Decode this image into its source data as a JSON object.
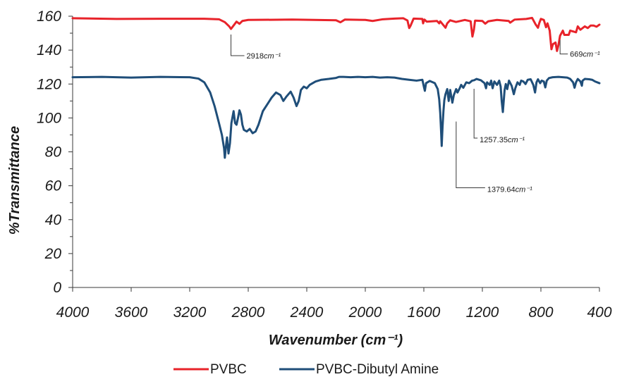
{
  "chart_data": {
    "type": "line",
    "xlabel": "Wavenumber (cm⁻¹)",
    "ylabel": "%Transmittance",
    "xlim": [
      4000,
      400
    ],
    "ylim": [
      0,
      160
    ],
    "x_ticks": [
      4000,
      3600,
      3200,
      2800,
      2400,
      2000,
      1600,
      1200,
      800,
      400
    ],
    "y_ticks": [
      0,
      20,
      40,
      60,
      80,
      100,
      120,
      140,
      160
    ],
    "grid": false,
    "legend_position": "bottom",
    "series": [
      {
        "name": "PVBC",
        "color": "#e8232a",
        "points": [
          [
            4000,
            158.8
          ],
          [
            3700,
            158.4
          ],
          [
            3400,
            158.5
          ],
          [
            3100,
            158.5
          ],
          [
            3000,
            158.2
          ],
          [
            2960,
            156.5
          ],
          [
            2930,
            154.0
          ],
          [
            2918,
            152.5
          ],
          [
            2900,
            154.5
          ],
          [
            2880,
            156.8
          ],
          [
            2860,
            155.5
          ],
          [
            2840,
            157.2
          ],
          [
            2800,
            157.8
          ],
          [
            2500,
            158.0
          ],
          [
            2200,
            157.6
          ],
          [
            2170,
            156.4
          ],
          [
            2140,
            158.0
          ],
          [
            2000,
            157.8
          ],
          [
            1950,
            157.2
          ],
          [
            1880,
            158.2
          ],
          [
            1800,
            158.6
          ],
          [
            1740,
            158.8
          ],
          [
            1712,
            157.5
          ],
          [
            1700,
            153.0
          ],
          [
            1690,
            154.5
          ],
          [
            1670,
            158.6
          ],
          [
            1610,
            158.4
          ],
          [
            1605,
            155.8
          ],
          [
            1596,
            158.0
          ],
          [
            1580,
            156.8
          ],
          [
            1510,
            157.2
          ],
          [
            1495,
            155.8
          ],
          [
            1488,
            157.0
          ],
          [
            1452,
            153.2
          ],
          [
            1440,
            155.8
          ],
          [
            1420,
            157.6
          ],
          [
            1380,
            156.6
          ],
          [
            1320,
            157.8
          ],
          [
            1280,
            157.0
          ],
          [
            1268,
            148.0
          ],
          [
            1258,
            152.0
          ],
          [
            1250,
            157.4
          ],
          [
            1200,
            157.2
          ],
          [
            1180,
            155.6
          ],
          [
            1160,
            157.0
          ],
          [
            1100,
            157.8
          ],
          [
            1020,
            157.2
          ],
          [
            1010,
            156.2
          ],
          [
            980,
            158.0
          ],
          [
            900,
            158.4
          ],
          [
            860,
            159.0
          ],
          [
            835,
            155.0
          ],
          [
            820,
            153.2
          ],
          [
            810,
            156.2
          ],
          [
            800,
            158.4
          ],
          [
            780,
            157.8
          ],
          [
            765,
            153.5
          ],
          [
            755,
            155.8
          ],
          [
            740,
            151.5
          ],
          [
            728,
            140.5
          ],
          [
            718,
            143.5
          ],
          [
            700,
            144.5
          ],
          [
            690,
            139.5
          ],
          [
            680,
            143.0
          ],
          [
            669,
            148.5
          ],
          [
            650,
            151.5
          ],
          [
            640,
            149.0
          ],
          [
            610,
            149.0
          ],
          [
            600,
            151.5
          ],
          [
            560,
            150.5
          ],
          [
            548,
            154.0
          ],
          [
            530,
            152.0
          ],
          [
            500,
            154.0
          ],
          [
            480,
            153.0
          ],
          [
            460,
            154.5
          ],
          [
            440,
            154.5
          ],
          [
            420,
            153.8
          ],
          [
            400,
            155.0
          ]
        ]
      },
      {
        "name": "PVBC-Dibutyl Amine",
        "color": "#1f4e79",
        "points": [
          [
            4000,
            124.0
          ],
          [
            3800,
            124.2
          ],
          [
            3600,
            123.8
          ],
          [
            3400,
            124.2
          ],
          [
            3200,
            124.0
          ],
          [
            3140,
            123.2
          ],
          [
            3100,
            121.0
          ],
          [
            3060,
            115.0
          ],
          [
            3030,
            107.0
          ],
          [
            3000,
            97.0
          ],
          [
            2980,
            90.0
          ],
          [
            2965,
            82.0
          ],
          [
            2960,
            76.5
          ],
          [
            2950,
            85.0
          ],
          [
            2945,
            88.5
          ],
          [
            2935,
            79.0
          ],
          [
            2925,
            85.0
          ],
          [
            2915,
            97.0
          ],
          [
            2900,
            104.0
          ],
          [
            2890,
            97.0
          ],
          [
            2880,
            96.0
          ],
          [
            2870,
            100.0
          ],
          [
            2860,
            104.5
          ],
          [
            2850,
            102.0
          ],
          [
            2840,
            96.0
          ],
          [
            2830,
            93.0
          ],
          [
            2810,
            92.0
          ],
          [
            2790,
            93.5
          ],
          [
            2770,
            91.0
          ],
          [
            2750,
            92.0
          ],
          [
            2730,
            96.0
          ],
          [
            2700,
            104.0
          ],
          [
            2670,
            108.0
          ],
          [
            2640,
            112.0
          ],
          [
            2610,
            115.0
          ],
          [
            2580,
            113.5
          ],
          [
            2560,
            110.0
          ],
          [
            2540,
            112.5
          ],
          [
            2510,
            115.5
          ],
          [
            2490,
            112.0
          ],
          [
            2470,
            107.0
          ],
          [
            2455,
            110.0
          ],
          [
            2440,
            116.5
          ],
          [
            2420,
            118.5
          ],
          [
            2400,
            117.5
          ],
          [
            2380,
            119.5
          ],
          [
            2340,
            121.5
          ],
          [
            2300,
            122.5
          ],
          [
            2250,
            123.0
          ],
          [
            2200,
            123.6
          ],
          [
            2180,
            124.2
          ],
          [
            2150,
            124.2
          ],
          [
            2100,
            124.0
          ],
          [
            2050,
            124.2
          ],
          [
            2000,
            124.0
          ],
          [
            1950,
            124.2
          ],
          [
            1900,
            123.8
          ],
          [
            1850,
            124.0
          ],
          [
            1800,
            123.8
          ],
          [
            1750,
            123.0
          ],
          [
            1700,
            122.5
          ],
          [
            1650,
            122.0
          ],
          [
            1610,
            122.5
          ],
          [
            1600,
            118.5
          ],
          [
            1593,
            116.0
          ],
          [
            1585,
            120.5
          ],
          [
            1560,
            121.8
          ],
          [
            1525,
            120.5
          ],
          [
            1505,
            117.0
          ],
          [
            1495,
            111.0
          ],
          [
            1488,
            103.0
          ],
          [
            1482,
            92.0
          ],
          [
            1478,
            83.5
          ],
          [
            1472,
            95.0
          ],
          [
            1466,
            104.0
          ],
          [
            1460,
            110.5
          ],
          [
            1452,
            114.0
          ],
          [
            1440,
            117.0
          ],
          [
            1430,
            110.0
          ],
          [
            1420,
            116.5
          ],
          [
            1405,
            109.0
          ],
          [
            1395,
            113.5
          ],
          [
            1379,
            117.0
          ],
          [
            1370,
            115.0
          ],
          [
            1355,
            117.5
          ],
          [
            1345,
            119.5
          ],
          [
            1330,
            117.8
          ],
          [
            1310,
            121.0
          ],
          [
            1290,
            120.5
          ],
          [
            1270,
            122.0
          ],
          [
            1257,
            122.2
          ],
          [
            1240,
            123.0
          ],
          [
            1210,
            122.2
          ],
          [
            1185,
            120.5
          ],
          [
            1175,
            117.5
          ],
          [
            1168,
            121.0
          ],
          [
            1150,
            119.5
          ],
          [
            1140,
            122.0
          ],
          [
            1130,
            117.5
          ],
          [
            1118,
            121.5
          ],
          [
            1100,
            119.5
          ],
          [
            1085,
            122.0
          ],
          [
            1075,
            118.5
          ],
          [
            1068,
            110.0
          ],
          [
            1060,
            103.5
          ],
          [
            1055,
            109.0
          ],
          [
            1048,
            116.5
          ],
          [
            1040,
            120.0
          ],
          [
            1030,
            117.0
          ],
          [
            1018,
            122.0
          ],
          [
            1000,
            119.0
          ],
          [
            985,
            114.0
          ],
          [
            975,
            117.5
          ],
          [
            960,
            121.0
          ],
          [
            945,
            119.5
          ],
          [
            935,
            122.0
          ],
          [
            920,
            121.5
          ],
          [
            905,
            120.0
          ],
          [
            890,
            122.5
          ],
          [
            870,
            122.8
          ],
          [
            852,
            119.5
          ],
          [
            840,
            115.0
          ],
          [
            830,
            121.0
          ],
          [
            820,
            122.8
          ],
          [
            805,
            120.5
          ],
          [
            795,
            122.0
          ],
          [
            780,
            121.5
          ],
          [
            770,
            118.0
          ],
          [
            760,
            122.0
          ],
          [
            745,
            123.5
          ],
          [
            720,
            124.0
          ],
          [
            680,
            124.2
          ],
          [
            650,
            124.0
          ],
          [
            620,
            123.8
          ],
          [
            600,
            123.0
          ],
          [
            580,
            121.0
          ],
          [
            570,
            117.8
          ],
          [
            560,
            121.0
          ],
          [
            548,
            123.0
          ],
          [
            530,
            121.5
          ],
          [
            520,
            119.0
          ],
          [
            515,
            122.0
          ],
          [
            500,
            123.0
          ],
          [
            470,
            122.8
          ],
          [
            450,
            122.5
          ],
          [
            430,
            121.5
          ],
          [
            400,
            120.5
          ]
        ]
      }
    ],
    "annotations": [
      {
        "x": 2918,
        "y": 152.5,
        "value": "2918",
        "unit": "cm⁻¹",
        "series": "PVBC"
      },
      {
        "x": 669,
        "y": 148.5,
        "value": "669",
        "unit": "cm⁻¹",
        "series": "PVBC"
      },
      {
        "x": 1257,
        "y": 122.2,
        "value": "1257.35",
        "unit": "cm⁻¹",
        "series": "PVBC-Dibutyl Amine"
      },
      {
        "x": 1379,
        "y": 117.0,
        "value": "1379.64",
        "unit": "cm⁻¹",
        "series": "PVBC-Dibutyl Amine"
      }
    ]
  }
}
